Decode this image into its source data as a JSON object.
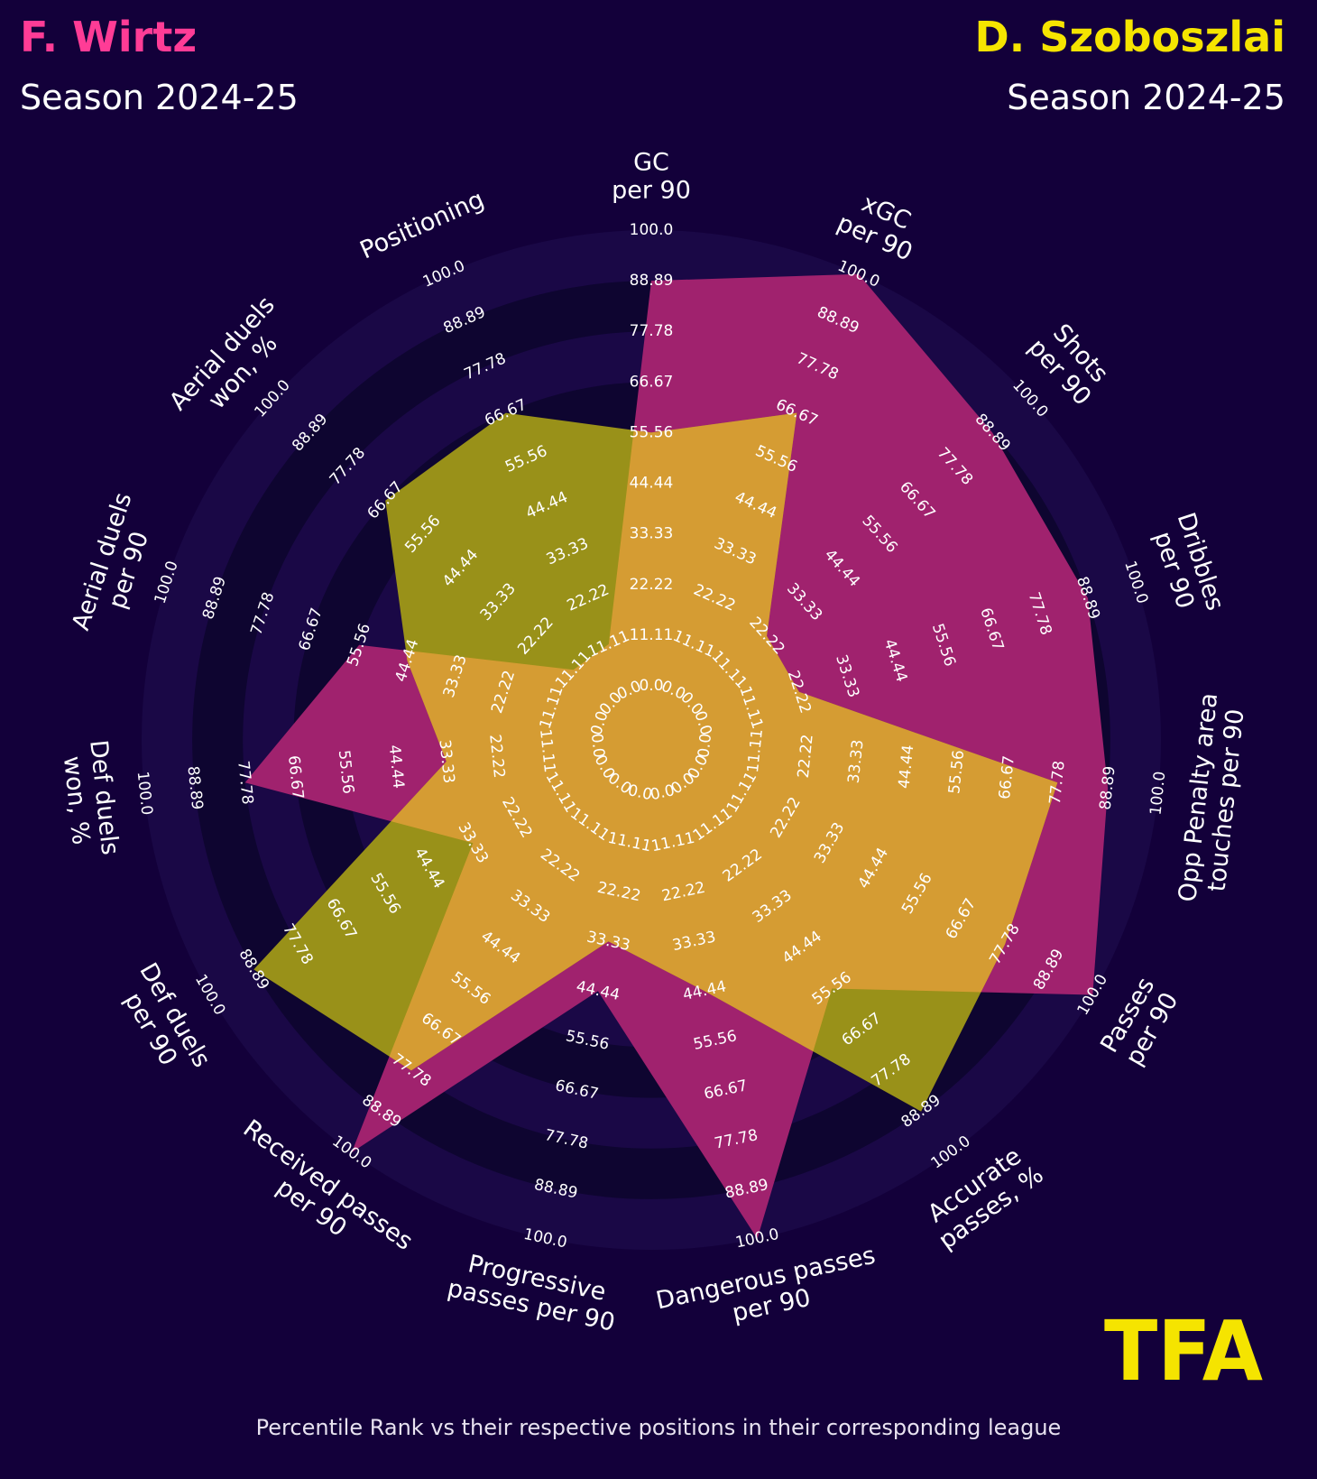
{
  "header": {
    "player1_name": "F. Wirtz",
    "player1_season": "Season 2024-25",
    "player2_name": "D. Szoboszlai",
    "player2_season": "Season 2024-25"
  },
  "footer_text": "Percentile Rank vs their respective positions in their corresponding league",
  "logo_text": "TFA",
  "colors": {
    "background": "#13003a",
    "player1": "#ff3c96",
    "player2": "#f5e400",
    "player1_fill": "#a0226e",
    "player2_fill": "#999119",
    "overlap_fill": "#d59c33",
    "text": "#ffffff"
  },
  "chart_data": {
    "type": "radar",
    "parameters": [
      [
        "GC",
        "per 90"
      ],
      [
        "xGC",
        "per 90"
      ],
      [
        "Shots",
        "per 90"
      ],
      [
        "Dribbles",
        "per 90"
      ],
      [
        "Opp Penalty area",
        "touches per 90"
      ],
      [
        "Passes",
        "per 90"
      ],
      [
        "Accurate",
        "passes, %"
      ],
      [
        "Dangerous passes",
        "per 90"
      ],
      [
        "Progressive",
        "passes per 90"
      ],
      [
        "Received passes",
        "per 90"
      ],
      [
        "Def duels",
        "per 90"
      ],
      [
        "Def duels",
        "won, %"
      ],
      [
        "Aerial duels",
        "per 90"
      ],
      [
        "Aerial duels",
        "won, %"
      ],
      [
        "Positioning"
      ]
    ],
    "rings": [
      "0.0",
      "11.11",
      "22.22",
      "33.33",
      "44.44",
      "55.56",
      "66.67",
      "77.78",
      "88.89",
      "100.0"
    ],
    "range": [
      0,
      100
    ],
    "series": [
      {
        "name": "F. Wirtz",
        "values": [
          88.89,
          100.0,
          88.89,
          88.89,
          88.89,
          100.0,
          55.56,
          100.0,
          44.44,
          100.0,
          33.33,
          77.78,
          55.56,
          11.11,
          11.11
        ]
      },
      {
        "name": "D. Szoboszlai",
        "values": [
          55.56,
          66.67,
          22.22,
          22.22,
          77.78,
          77.78,
          88.89,
          44.44,
          33.33,
          77.78,
          88.89,
          33.33,
          44.44,
          66.67,
          66.67
        ]
      }
    ]
  }
}
